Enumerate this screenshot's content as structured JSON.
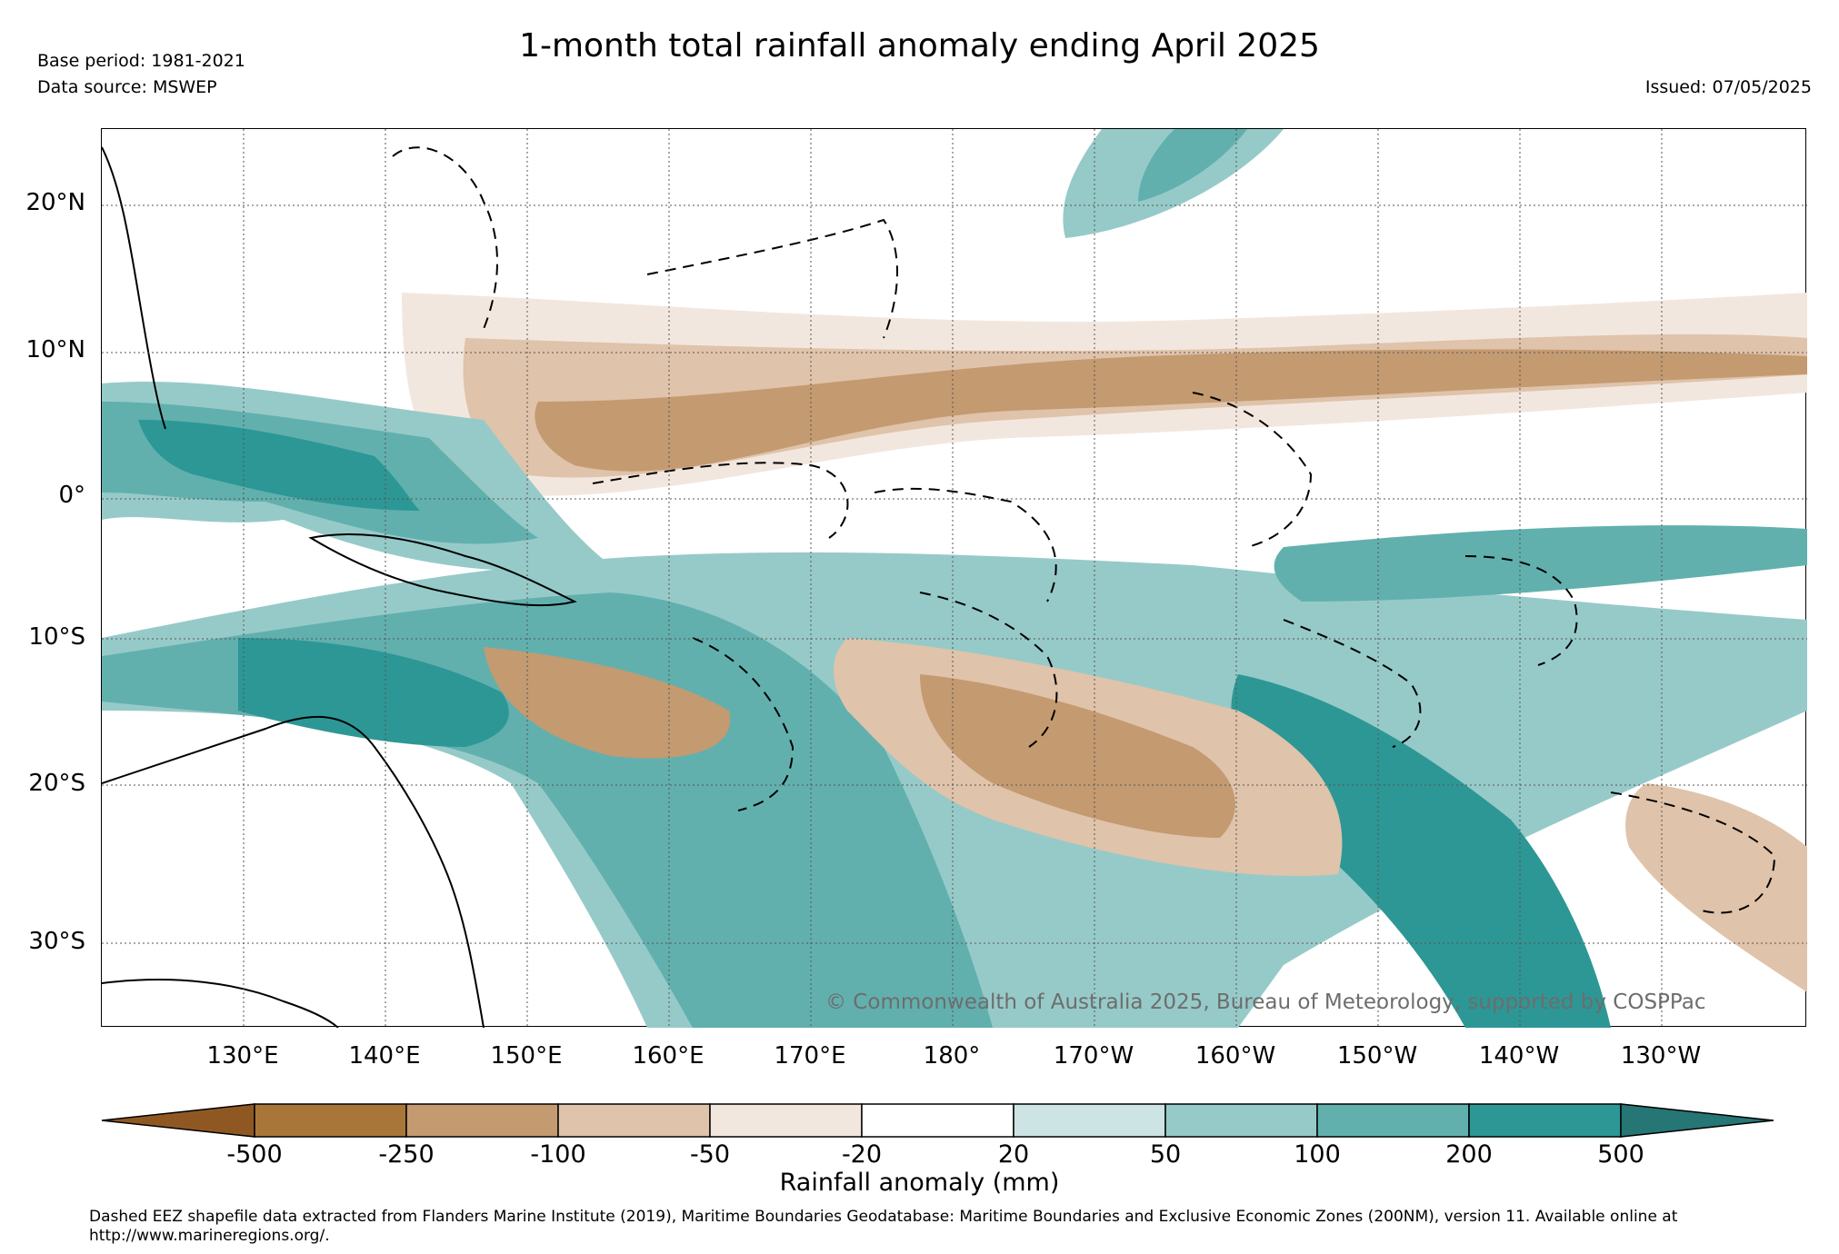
{
  "title": "1-month total rainfall anomaly ending April 2025",
  "header": {
    "base_period": "Base period: 1981-2021",
    "data_source": "Data source: MSWEP",
    "issued": "Issued: 07/05/2025"
  },
  "map": {
    "lat_labels": [
      "20°N",
      "10°N",
      "0°",
      "10°S",
      "20°S",
      "30°S"
    ],
    "lon_labels": [
      "130°E",
      "140°E",
      "150°E",
      "160°E",
      "170°E",
      "180°",
      "170°W",
      "160°W",
      "150°W",
      "140°W",
      "130°W"
    ],
    "copyright": "© Commonwealth of Australia 2025, Bureau of Meteorology, supported by COSPPac",
    "eez_boundaries": "dashed",
    "anomaly_pattern": {
      "dry_bands": [
        "north of equator 0-12°N across central/east Pacific",
        "south-central Pacific 12-25°S around 165°E-150°W"
      ],
      "wet_bands": [
        "maritime continent and Papua New Guinea",
        "South Pacific Convergence Zone from Coral Sea to 140°W",
        "equatorial southern belt 2-8°S east of 170°W"
      ]
    }
  },
  "colorbar": {
    "label": "Rainfall anomaly (mm)",
    "ticks": [
      "-500",
      "-250",
      "-100",
      "-50",
      "-20",
      "20",
      "50",
      "100",
      "200",
      "500"
    ],
    "colors": [
      "#8f5823",
      "#a9763a",
      "#c49a70",
      "#dfc3aa",
      "#f2e7de",
      "#ffffff",
      "#cce4e3",
      "#96cac8",
      "#61b0ae",
      "#2d9795",
      "#257674"
    ],
    "extend": "both"
  },
  "footnote": "Dashed EEZ shapefile data extracted from Flanders Marine Institute (2019), Maritime Boundaries Geodatabase: Maritime Boundaries and Exclusive Economic Zones (200NM), version 11. Available online at http://www.marineregions.org/."
}
